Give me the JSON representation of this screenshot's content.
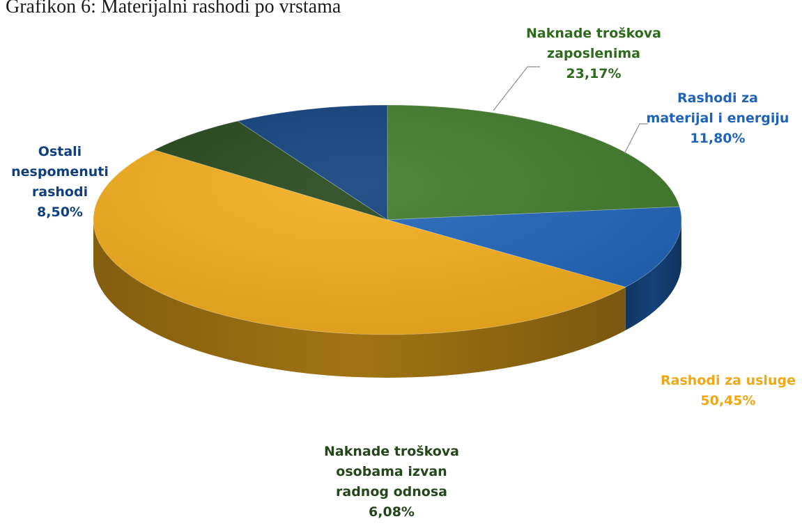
{
  "page": {
    "title": "Grafikon 6: Materijalni rashodi po vrstama"
  },
  "chart_data": {
    "type": "pie",
    "title": "Grafikon 6: Materijalni rashodi po vrstama",
    "style": "3D pie",
    "slices": [
      {
        "label_lines": [
          "Naknade troškova",
          "zaposlenima"
        ],
        "value_text": "23,17%",
        "value": 23.17,
        "color": "#3f7a2a",
        "label_color": "#2e6a1c"
      },
      {
        "label_lines": [
          "Rashodi za",
          "materijal i energiju"
        ],
        "value_text": "11,80%",
        "value": 11.8,
        "color": "#1f63b8",
        "label_color": "#1f63b8"
      },
      {
        "label_lines": [
          "Rashodi za usluge"
        ],
        "value_text": "50,45%",
        "value": 50.45,
        "color": "#f3ad1c",
        "label_color": "#efa814"
      },
      {
        "label_lines": [
          "Naknade troškova",
          "osobama izvan",
          "radnog odnosa"
        ],
        "value_text": "6,08%",
        "value": 6.08,
        "color": "#23461a",
        "label_color": "#23461a"
      },
      {
        "label_lines": [
          "Ostali",
          "nespomenuti",
          "rashodi"
        ],
        "value_text": "8,50%",
        "value": 8.5,
        "color": "#0f3f7d",
        "label_color": "#0f3f7d"
      }
    ]
  }
}
